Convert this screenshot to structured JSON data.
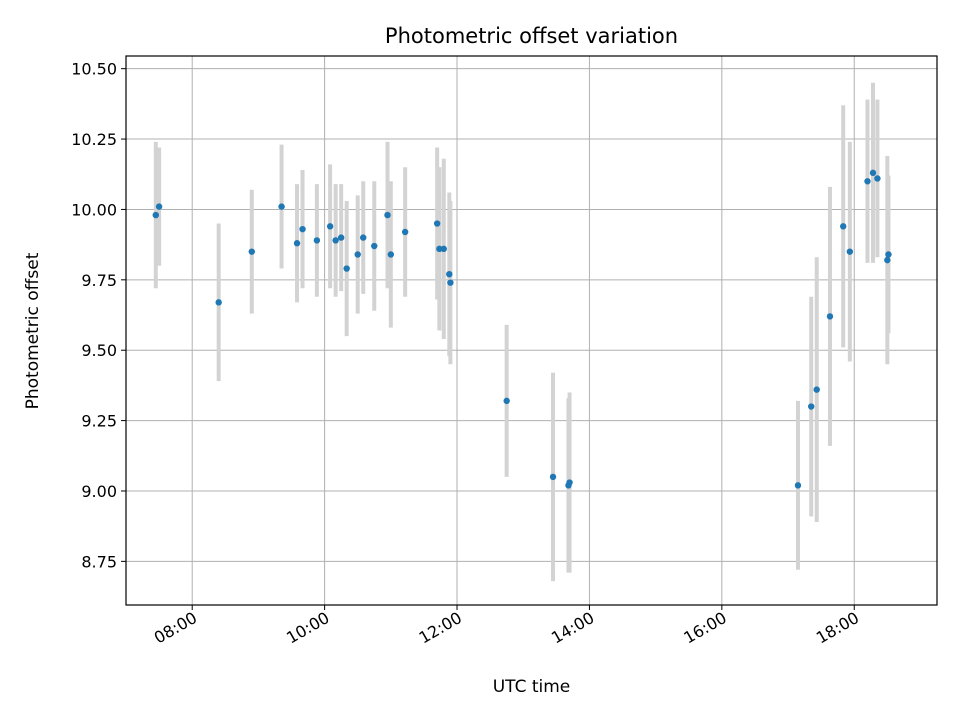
{
  "chart_data": {
    "type": "scatter",
    "title": "Photometric offset variation",
    "xlabel": "UTC time",
    "ylabel": "Photometric offset",
    "x_ticks": [
      "08:00",
      "10:00",
      "12:00",
      "14:00",
      "16:00",
      "18:00"
    ],
    "y_ticks": [
      "8.75",
      "9.00",
      "9.25",
      "9.50",
      "9.75",
      "10.00",
      "10.25",
      "10.50"
    ],
    "xlim": [
      "07:00",
      "19:15"
    ],
    "ylim": [
      8.595,
      10.545
    ],
    "grid": true,
    "colors": {
      "point": "#1f77b4",
      "error_bar": "#d3d3d3",
      "grid": "#b0b0b0"
    },
    "points": [
      {
        "time": "07:27",
        "y": 9.98,
        "err": 0.26
      },
      {
        "time": "07:30",
        "y": 10.01,
        "err": 0.21
      },
      {
        "time": "08:24",
        "y": 9.67,
        "err": 0.28
      },
      {
        "time": "08:54",
        "y": 9.85,
        "err": 0.22
      },
      {
        "time": "09:21",
        "y": 10.01,
        "err": 0.22
      },
      {
        "time": "09:35",
        "y": 9.88,
        "err": 0.21
      },
      {
        "time": "09:40",
        "y": 9.93,
        "err": 0.21
      },
      {
        "time": "09:53",
        "y": 9.89,
        "err": 0.2
      },
      {
        "time": "10:05",
        "y": 9.94,
        "err": 0.22
      },
      {
        "time": "10:10",
        "y": 9.89,
        "err": 0.2
      },
      {
        "time": "10:15",
        "y": 9.9,
        "err": 0.19
      },
      {
        "time": "10:20",
        "y": 9.79,
        "err": 0.24
      },
      {
        "time": "10:30",
        "y": 9.84,
        "err": 0.21
      },
      {
        "time": "10:35",
        "y": 9.9,
        "err": 0.2
      },
      {
        "time": "10:45",
        "y": 9.87,
        "err": 0.23
      },
      {
        "time": "10:57",
        "y": 9.98,
        "err": 0.26
      },
      {
        "time": "11:00",
        "y": 9.84,
        "err": 0.26
      },
      {
        "time": "11:13",
        "y": 9.92,
        "err": 0.23
      },
      {
        "time": "11:42",
        "y": 9.95,
        "err": 0.27
      },
      {
        "time": "11:44",
        "y": 9.86,
        "err": 0.29
      },
      {
        "time": "11:48",
        "y": 9.86,
        "err": 0.32
      },
      {
        "time": "11:53",
        "y": 9.77,
        "err": 0.29
      },
      {
        "time": "11:54",
        "y": 9.74,
        "err": 0.29
      },
      {
        "time": "12:45",
        "y": 9.32,
        "err": 0.27
      },
      {
        "time": "13:27",
        "y": 9.05,
        "err": 0.37
      },
      {
        "time": "13:41",
        "y": 9.02,
        "err": 0.31
      },
      {
        "time": "13:42",
        "y": 9.03,
        "err": 0.32
      },
      {
        "time": "17:09",
        "y": 9.02,
        "err": 0.3
      },
      {
        "time": "17:21",
        "y": 9.3,
        "err": 0.39
      },
      {
        "time": "17:26",
        "y": 9.36,
        "err": 0.47
      },
      {
        "time": "17:38",
        "y": 9.62,
        "err": 0.46
      },
      {
        "time": "17:50",
        "y": 9.94,
        "err": 0.43
      },
      {
        "time": "17:56",
        "y": 9.85,
        "err": 0.39
      },
      {
        "time": "18:12",
        "y": 10.1,
        "err": 0.29
      },
      {
        "time": "18:17",
        "y": 10.13,
        "err": 0.32
      },
      {
        "time": "18:21",
        "y": 10.11,
        "err": 0.28
      },
      {
        "time": "18:30",
        "y": 9.82,
        "err": 0.37
      },
      {
        "time": "18:31",
        "y": 9.84,
        "err": 0.28
      }
    ]
  }
}
